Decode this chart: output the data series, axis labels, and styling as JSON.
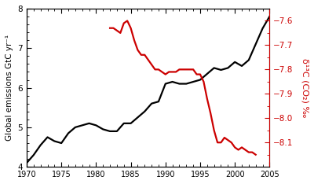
{
  "black_x": [
    1970,
    1971,
    1972,
    1973,
    1974,
    1975,
    1976,
    1977,
    1978,
    1979,
    1980,
    1981,
    1982,
    1983,
    1984,
    1985,
    1986,
    1987,
    1988,
    1989,
    1990,
    1991,
    1992,
    1993,
    1994,
    1995,
    1996,
    1997,
    1998,
    1999,
    2000,
    2001,
    2002,
    2003,
    2004,
    2005
  ],
  "black_y": [
    4.1,
    4.3,
    4.55,
    4.75,
    4.65,
    4.6,
    4.85,
    5.0,
    5.05,
    5.1,
    5.05,
    4.95,
    4.9,
    4.9,
    5.1,
    5.1,
    5.25,
    5.4,
    5.6,
    5.65,
    6.1,
    6.15,
    6.1,
    6.1,
    6.15,
    6.2,
    6.35,
    6.5,
    6.45,
    6.5,
    6.65,
    6.55,
    6.7,
    7.1,
    7.5,
    7.8
  ],
  "red_x": [
    1982.0,
    1982.5,
    1983.0,
    1983.5,
    1984.0,
    1984.5,
    1985.0,
    1985.5,
    1986.0,
    1986.5,
    1987.0,
    1987.5,
    1988.0,
    1988.5,
    1989.0,
    1989.5,
    1990.0,
    1990.5,
    1991.0,
    1991.5,
    1992.0,
    1992.5,
    1993.0,
    1993.5,
    1994.0,
    1994.5,
    1995.0,
    1995.5,
    1996.0,
    1996.5,
    1997.0,
    1997.5,
    1998.0,
    1998.5,
    1999.0,
    1999.5,
    2000.0,
    2000.5,
    2001.0,
    2001.5,
    2002.0,
    2002.5,
    2003.0
  ],
  "red_y": [
    -7.63,
    -7.63,
    -7.64,
    -7.65,
    -7.61,
    -7.6,
    -7.63,
    -7.68,
    -7.72,
    -7.74,
    -7.74,
    -7.76,
    -7.78,
    -7.8,
    -7.8,
    -7.81,
    -7.82,
    -7.81,
    -7.81,
    -7.81,
    -7.8,
    -7.8,
    -7.8,
    -7.8,
    -7.8,
    -7.82,
    -7.82,
    -7.85,
    -7.92,
    -7.98,
    -8.05,
    -8.1,
    -8.1,
    -8.08,
    -8.09,
    -8.1,
    -8.12,
    -8.13,
    -8.12,
    -8.13,
    -8.14,
    -8.14,
    -8.15
  ],
  "xlim": [
    1970,
    2005
  ],
  "ylim_left": [
    4,
    8
  ],
  "ylim_right": [
    -8.2,
    -7.55
  ],
  "yticks_left": [
    4,
    5,
    6,
    7,
    8
  ],
  "yticks_right": [
    -8.1,
    -8.0,
    -7.9,
    -7.8,
    -7.7,
    -7.6
  ],
  "xticks": [
    1970,
    1975,
    1980,
    1985,
    1990,
    1995,
    2000,
    2005
  ],
  "ylabel_left": "Global emissions GtC yr⁻¹",
  "ylabel_right": "δ¹³C (CO₂) ‰",
  "black_color": "#000000",
  "red_color": "#cc0000",
  "bg_color": "#ffffff",
  "linewidth": 1.6
}
